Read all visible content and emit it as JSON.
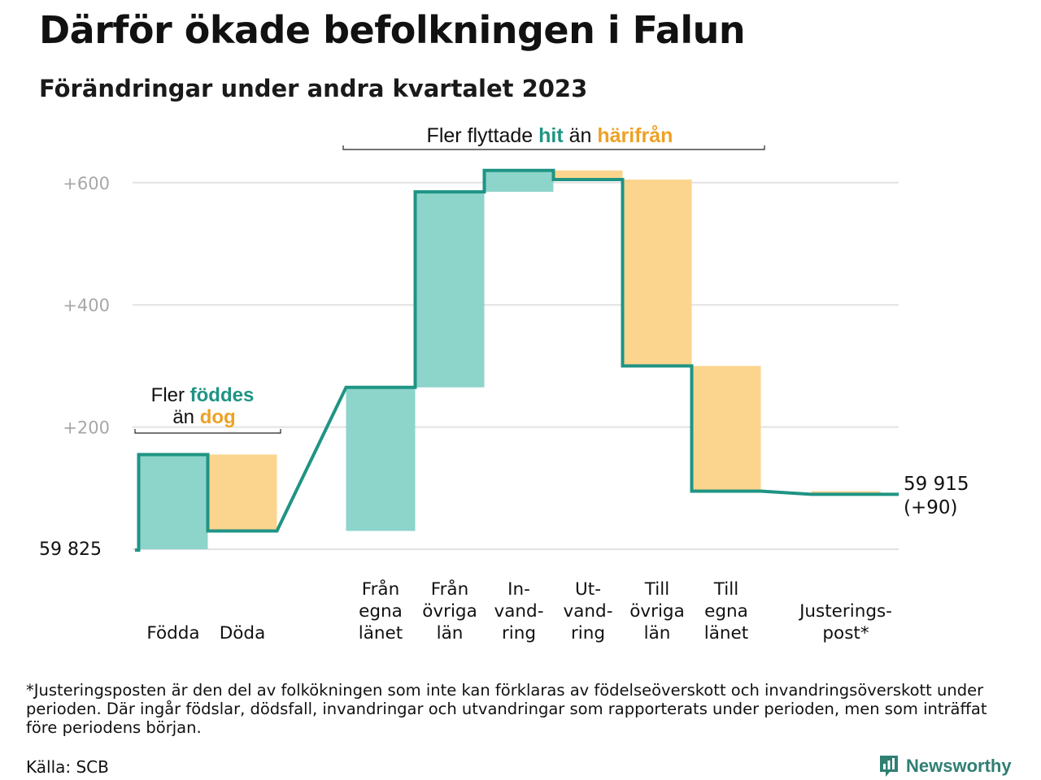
{
  "title": "Därför ökade befolkningen i Falun",
  "subtitle": "Förändringar under andra kvartalet 2023",
  "chart_data": {
    "type": "waterfall",
    "baseline_label": "59  825",
    "start_value": 59825,
    "end_label_value": "59 915",
    "end_label_change": "(+90)",
    "y_relative_range": [
      0,
      600
    ],
    "y_ticks": [
      {
        "value": 200,
        "label": "+200"
      },
      {
        "value": 400,
        "label": "+400"
      },
      {
        "value": 600,
        "label": "+600"
      }
    ],
    "grid": true,
    "steps": [
      {
        "label_lines": [
          "Födda"
        ],
        "change": 155,
        "kind": "in"
      },
      {
        "label_lines": [
          "Döda"
        ],
        "change": -125,
        "kind": "out"
      },
      {
        "label_lines": [
          "Från",
          "egna",
          "länet"
        ],
        "change": 235,
        "kind": "in"
      },
      {
        "label_lines": [
          "Från",
          "övriga",
          "län"
        ],
        "change": 320,
        "kind": "in"
      },
      {
        "label_lines": [
          "In-",
          "vand-",
          "ring"
        ],
        "change": 35,
        "kind": "in"
      },
      {
        "label_lines": [
          "Ut-",
          "vand-",
          "ring"
        ],
        "change": -15,
        "kind": "out"
      },
      {
        "label_lines": [
          "Till",
          "övriga",
          "län"
        ],
        "change": -305,
        "kind": "out"
      },
      {
        "label_lines": [
          "Till",
          "egna",
          "länet"
        ],
        "change": -205,
        "kind": "out"
      },
      {
        "label_lines": [
          "Justerings-",
          "post*"
        ],
        "change": -5,
        "kind": "out"
      }
    ],
    "annotations": {
      "births": {
        "line1_plain": "Fler ",
        "line1_highlight": "föddes",
        "line2_plain": "än ",
        "line2_highlight": "dog"
      },
      "migration": {
        "plain1": "Fler flyttade ",
        "highlight1": "hit",
        "plain2": " än ",
        "highlight2": "härifrån"
      }
    },
    "colors": {
      "in_fill": "#8dd4cb",
      "out_fill": "#fbd48d",
      "line": "#1f9484",
      "in_text": "#1f9484",
      "out_text": "#eea126",
      "grid": "#e2e2e2",
      "tick_text": "#a7a7a7"
    }
  },
  "footnote": "*Justeringsposten är den del av folkökningen som inte kan förklaras av födelseöverskott och invandringsöverskott under perioden. Där ingår födslar, dödsfall, invandringar och utvandringar som rapporterats under perioden, men som inträffat före periodens början.",
  "source": "Källa: SCB",
  "brand": {
    "name": "Newsworthy",
    "icon": "newsworthy-chart-icon",
    "color": "#2f7f73"
  }
}
